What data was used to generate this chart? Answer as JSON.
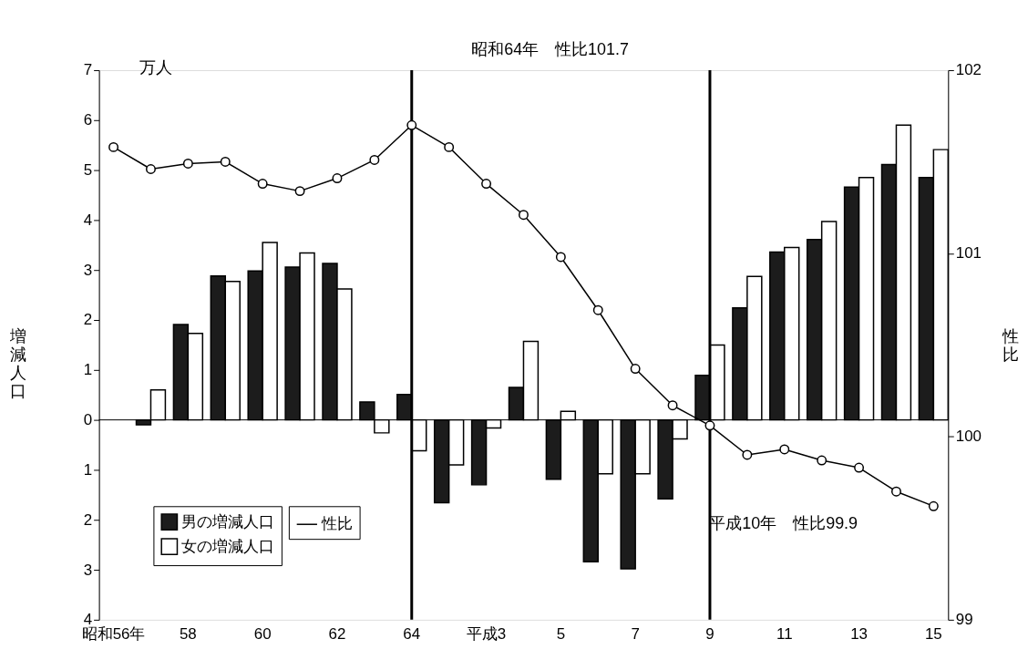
{
  "chart_data": {
    "type": "bar",
    "categories": [
      "昭和56年",
      null,
      "58",
      null,
      "60",
      null,
      "62",
      null,
      "64",
      null,
      "平成3",
      null,
      "5",
      null,
      "7",
      null,
      "9",
      null,
      "11",
      null,
      "13",
      null,
      "15"
    ],
    "ylabel": "増減人口",
    "y2label": "性比",
    "ylim": [
      -4,
      7
    ],
    "yticks": [
      {
        "value": -4,
        "label": "4"
      },
      {
        "value": -3,
        "label": "3"
      },
      {
        "value": -2,
        "label": "2"
      },
      {
        "value": -1,
        "label": "1"
      },
      0,
      1,
      2,
      3,
      4,
      5,
      6,
      7
    ],
    "y2lim": [
      99,
      102
    ],
    "y2ticks": [
      99,
      100,
      101,
      102
    ],
    "series": [
      {
        "name": "男の増減人口",
        "color": "#1c1c1c",
        "values": [
          null,
          -0.1,
          1.91,
          2.88,
          2.98,
          3.06,
          3.13,
          0.36,
          0.51,
          -1.66,
          -1.3,
          0.65,
          -1.19,
          -2.84,
          -2.98,
          -1.58,
          0.89,
          2.24,
          3.36,
          3.61,
          4.66,
          5.11,
          4.85
        ]
      },
      {
        "name": "女の増減人口",
        "color": "#ffffff",
        "values": [
          null,
          0.6,
          1.73,
          2.77,
          3.55,
          3.34,
          2.62,
          -0.26,
          -0.62,
          -0.9,
          -0.16,
          1.57,
          0.17,
          -1.08,
          -1.08,
          -0.38,
          1.5,
          2.87,
          3.45,
          3.97,
          4.85,
          5.9,
          5.41
        ]
      },
      {
        "name": "性比",
        "type": "line",
        "axis": "y2",
        "color": "#000000",
        "marker": "circle",
        "values": [
          101.58,
          101.46,
          101.49,
          101.5,
          101.38,
          101.34,
          101.41,
          101.51,
          101.7,
          101.58,
          101.38,
          101.21,
          100.98,
          100.69,
          100.37,
          100.17,
          100.06,
          99.9,
          99.93,
          99.87,
          99.83,
          99.7,
          99.62
        ]
      }
    ],
    "ref_lines": [
      {
        "axis": "y",
        "value": 0
      },
      {
        "axis": "x",
        "value": "64"
      },
      {
        "axis": "x",
        "value": "9"
      }
    ],
    "annotations": [
      "万人",
      "昭和64年　性比101.7",
      "平成10年　性比99.9"
    ],
    "legend": "bottom left",
    "grid": false
  }
}
